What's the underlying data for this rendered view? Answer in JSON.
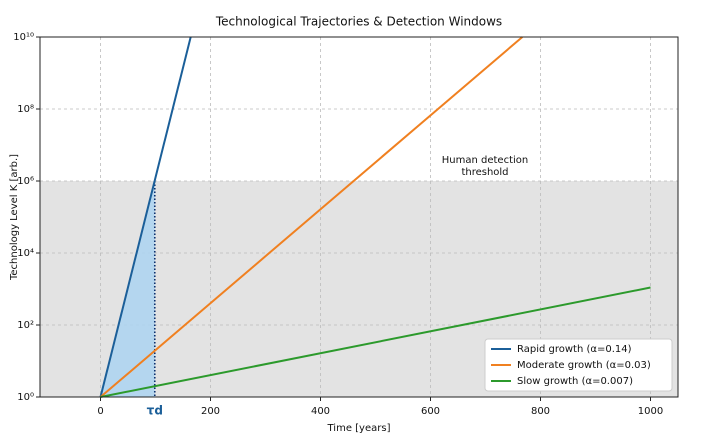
{
  "chart_data": {
    "type": "line",
    "title": "Technological Trajectories & Detection Windows",
    "xlabel": "Time [years]",
    "ylabel": "Technology Level K [arb.]",
    "xlim": [
      -110,
      1050
    ],
    "ylim": [
      1,
      10000000000
    ],
    "log_y": true,
    "grid": true,
    "legend": "lower right",
    "xticks": [
      0,
      200,
      400,
      600,
      800,
      1000
    ],
    "yticks": [
      {
        "value": 1,
        "label": "10⁰"
      },
      {
        "value": 100,
        "label": "10²"
      },
      {
        "value": 10000,
        "label": "10⁴"
      },
      {
        "value": 1000000,
        "label": "10⁶"
      },
      {
        "value": 100000000,
        "label": "10⁸"
      },
      {
        "value": 10000000000,
        "label": "10¹⁰"
      }
    ],
    "threshold": 1000000,
    "threshold_color": "#e3e3e3",
    "threshold_label": [
      "Human detection",
      "threshold"
    ],
    "tau_d": {
      "value": 98.7,
      "label": "τd"
    },
    "tau_color": "#aed4f0",
    "series": [
      {
        "name": "Rapid growth (α=0.14)",
        "color": "#1b5f99",
        "x": [
          0,
          164
        ],
        "values": [
          1,
          10000000000
        ]
      },
      {
        "name": "Moderate growth (α=0.03)",
        "color": "#f08020",
        "x": [
          0,
          767
        ],
        "values": [
          1,
          10000000000
        ]
      },
      {
        "name": "Slow growth (α=0.007)",
        "color": "#2c9a2c",
        "x": [
          0,
          1000
        ],
        "values": [
          1,
          1100
        ]
      }
    ]
  }
}
